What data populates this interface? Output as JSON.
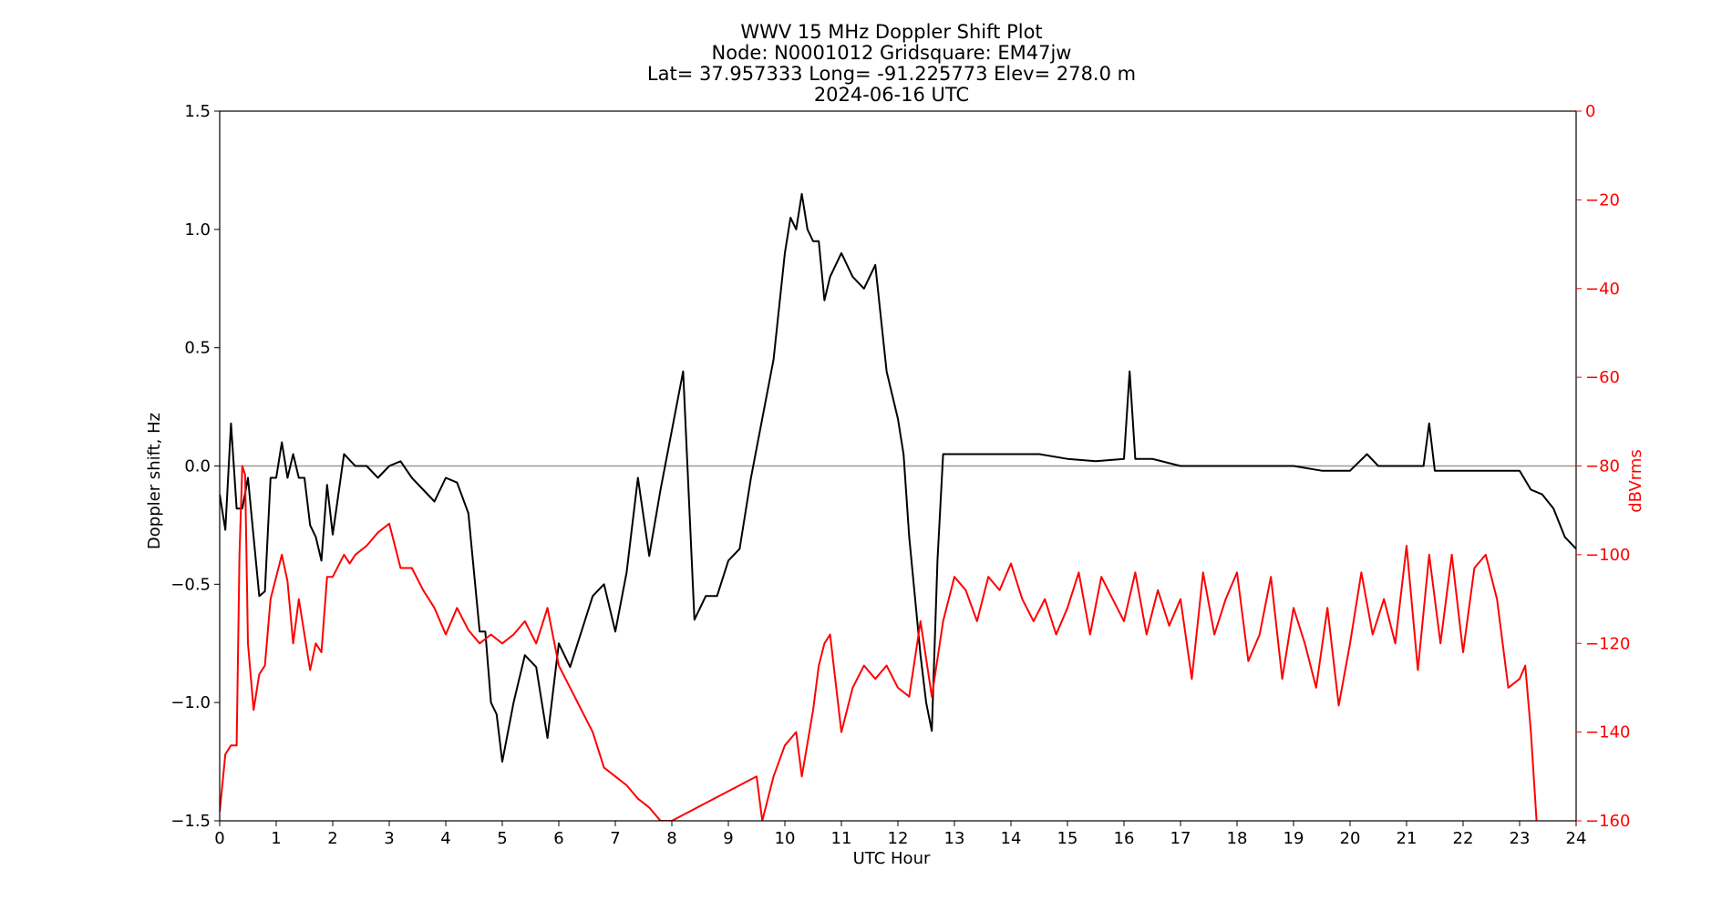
{
  "chart_data": {
    "type": "line",
    "title_lines": [
      "WWV 15 MHz Doppler Shift Plot",
      "Node:  N0001012     Gridsquare:  EM47jw",
      "Lat= 37.957333    Long= -91.225773    Elev= 278.0 m",
      "2024-06-16  UTC"
    ],
    "xlabel": "UTC Hour",
    "ylabel_left": "Doppler shift, Hz",
    "ylabel_right": "dBVrms",
    "xlim": [
      0,
      24
    ],
    "ylim_left": [
      -1.5,
      1.5
    ],
    "ylim_right": [
      -160,
      0
    ],
    "x_ticks": [
      "0",
      "1",
      "2",
      "3",
      "4",
      "5",
      "6",
      "7",
      "8",
      "9",
      "10",
      "11",
      "12",
      "13",
      "14",
      "15",
      "16",
      "17",
      "18",
      "19",
      "20",
      "21",
      "22",
      "23",
      "24"
    ],
    "y_ticks_left": [
      "1.5",
      "1.0",
      "0.5",
      "0.0",
      "−0.5",
      "−1.0",
      "−1.5"
    ],
    "y_ticks_right": [
      "0",
      "−20",
      "−40",
      "−60",
      "−80",
      "−100",
      "−120",
      "−140",
      "−160"
    ],
    "zero_line": 0,
    "colors": {
      "doppler": "#000000",
      "power": "#ff0000",
      "zero_line": "#999999",
      "right_axis": "#ff0000"
    },
    "series": [
      {
        "axis": "left",
        "x": [
          0,
          0.1,
          0.2,
          0.3,
          0.4,
          0.5,
          0.6,
          0.7,
          0.8,
          0.9,
          1.0,
          1.1,
          1.2,
          1.3,
          1.4,
          1.5,
          1.6,
          1.7,
          1.8,
          1.9,
          2.0,
          2.2,
          2.4,
          2.6,
          2.8,
          3.0,
          3.2,
          3.4,
          3.6,
          3.8,
          4.0,
          4.2,
          4.4,
          4.6,
          4.7,
          4.8,
          4.9,
          5.0,
          5.2,
          5.4,
          5.6,
          5.8,
          6.0,
          6.2,
          6.4,
          6.6,
          6.8,
          7.0,
          7.2,
          7.4,
          7.6,
          7.8,
          8.0,
          8.2,
          8.4,
          8.6,
          8.8,
          9.0,
          9.2,
          9.4,
          9.6,
          9.8,
          10.0,
          10.1,
          10.2,
          10.3,
          10.4,
          10.5,
          10.6,
          10.7,
          10.8,
          11.0,
          11.2,
          11.4,
          11.6,
          11.8,
          11.9,
          12.0,
          12.1,
          12.2,
          12.3,
          12.4,
          12.5,
          12.6,
          12.7,
          12.8,
          13.0,
          13.5,
          14.0,
          14.5,
          15.0,
          15.5,
          16.0,
          16.1,
          16.2,
          16.5,
          17.0,
          17.5,
          18.0,
          18.5,
          19.0,
          19.5,
          20.0,
          20.3,
          20.5,
          21.0,
          21.3,
          21.4,
          21.5,
          22.0,
          22.5,
          23.0,
          23.2,
          23.4,
          23.6,
          23.8,
          24.0
        ],
        "y": [
          -0.12,
          -0.27,
          0.18,
          -0.18,
          -0.18,
          -0.05,
          -0.3,
          -0.55,
          -0.53,
          -0.05,
          -0.05,
          0.1,
          -0.05,
          0.05,
          -0.05,
          -0.05,
          -0.25,
          -0.3,
          -0.4,
          -0.08,
          -0.29,
          0.05,
          0.0,
          0.0,
          -0.05,
          0.0,
          0.02,
          -0.05,
          -0.1,
          -0.15,
          -0.05,
          -0.07,
          -0.2,
          -0.7,
          -0.7,
          -1.0,
          -1.05,
          -1.25,
          -1.0,
          -0.8,
          -0.85,
          -1.15,
          -0.75,
          -0.85,
          -0.7,
          -0.55,
          -0.5,
          -0.7,
          -0.45,
          -0.05,
          -0.38,
          -0.1,
          0.15,
          0.4,
          -0.65,
          -0.55,
          -0.55,
          -0.4,
          -0.35,
          -0.05,
          0.2,
          0.45,
          0.9,
          1.05,
          1.0,
          1.15,
          1.0,
          0.95,
          0.95,
          0.7,
          0.8,
          0.9,
          0.8,
          0.75,
          0.85,
          0.4,
          0.3,
          0.2,
          0.05,
          -0.3,
          -0.55,
          -0.8,
          -1.0,
          -1.12,
          -0.4,
          0.05,
          0.05,
          0.05,
          0.05,
          0.05,
          0.03,
          0.02,
          0.03,
          0.4,
          0.03,
          0.03,
          0.0,
          0.0,
          0.0,
          0.0,
          0.0,
          -0.02,
          -0.02,
          0.05,
          0.0,
          0.0,
          0.0,
          0.18,
          -0.02,
          -0.02,
          -0.02,
          -0.02,
          -0.1,
          -0.12,
          -0.18,
          -0.3,
          -0.35
        ]
      },
      {
        "axis": "right",
        "x": [
          0,
          0.1,
          0.2,
          0.3,
          0.35,
          0.4,
          0.45,
          0.5,
          0.6,
          0.7,
          0.8,
          0.9,
          1.0,
          1.1,
          1.2,
          1.3,
          1.4,
          1.5,
          1.6,
          1.7,
          1.8,
          1.9,
          2.0,
          2.2,
          2.3,
          2.4,
          2.6,
          2.8,
          3.0,
          3.2,
          3.4,
          3.6,
          3.8,
          4.0,
          4.2,
          4.4,
          4.6,
          4.8,
          5.0,
          5.2,
          5.4,
          5.6,
          5.8,
          6.0,
          6.2,
          6.4,
          6.6,
          6.8,
          7.0,
          7.2,
          7.4,
          7.6,
          7.8,
          8.0,
          9.5,
          9.6,
          9.8,
          10.0,
          10.2,
          10.3,
          10.5,
          10.6,
          10.7,
          10.8,
          11.0,
          11.2,
          11.4,
          11.6,
          11.8,
          12.0,
          12.2,
          12.4,
          12.6,
          12.8,
          13.0,
          13.2,
          13.4,
          13.6,
          13.8,
          14.0,
          14.2,
          14.4,
          14.6,
          14.8,
          15.0,
          15.2,
          15.4,
          15.6,
          15.8,
          16.0,
          16.2,
          16.4,
          16.6,
          16.8,
          17.0,
          17.2,
          17.4,
          17.6,
          17.8,
          18.0,
          18.2,
          18.4,
          18.6,
          18.8,
          19.0,
          19.2,
          19.4,
          19.6,
          19.8,
          20.0,
          20.2,
          20.4,
          20.6,
          20.8,
          21.0,
          21.2,
          21.4,
          21.6,
          21.8,
          22.0,
          22.2,
          22.4,
          22.6,
          22.8,
          23.0,
          23.1,
          23.2,
          23.3
        ],
        "y": [
          -158,
          -145,
          -143,
          -143,
          -100,
          -80,
          -82,
          -120,
          -135,
          -127,
          -125,
          -110,
          -105,
          -100,
          -106,
          -120,
          -110,
          -118,
          -126,
          -120,
          -122,
          -105,
          -105,
          -100,
          -102,
          -100,
          -98,
          -95,
          -93,
          -103,
          -103,
          -108,
          -112,
          -118,
          -112,
          -117,
          -120,
          -118,
          -120,
          -118,
          -115,
          -120,
          -112,
          -125,
          -130,
          -135,
          -140,
          -148,
          -150,
          -152,
          -155,
          -157,
          -160,
          -160,
          -150,
          -160,
          -150,
          -143,
          -140,
          -150,
          -135,
          -125,
          -120,
          -118,
          -140,
          -130,
          -125,
          -128,
          -125,
          -130,
          -132,
          -115,
          -132,
          -115,
          -105,
          -108,
          -115,
          -105,
          -108,
          -102,
          -110,
          -115,
          -110,
          -118,
          -112,
          -104,
          -118,
          -105,
          -110,
          -115,
          -104,
          -118,
          -108,
          -116,
          -110,
          -128,
          -104,
          -118,
          -110,
          -104,
          -124,
          -118,
          -105,
          -128,
          -112,
          -120,
          -130,
          -112,
          -134,
          -120,
          -104,
          -118,
          -110,
          -120,
          -98,
          -126,
          -100,
          -120,
          -100,
          -122,
          -103,
          -100,
          -110,
          -130,
          -128,
          -125,
          -140,
          -160
        ]
      }
    ]
  }
}
